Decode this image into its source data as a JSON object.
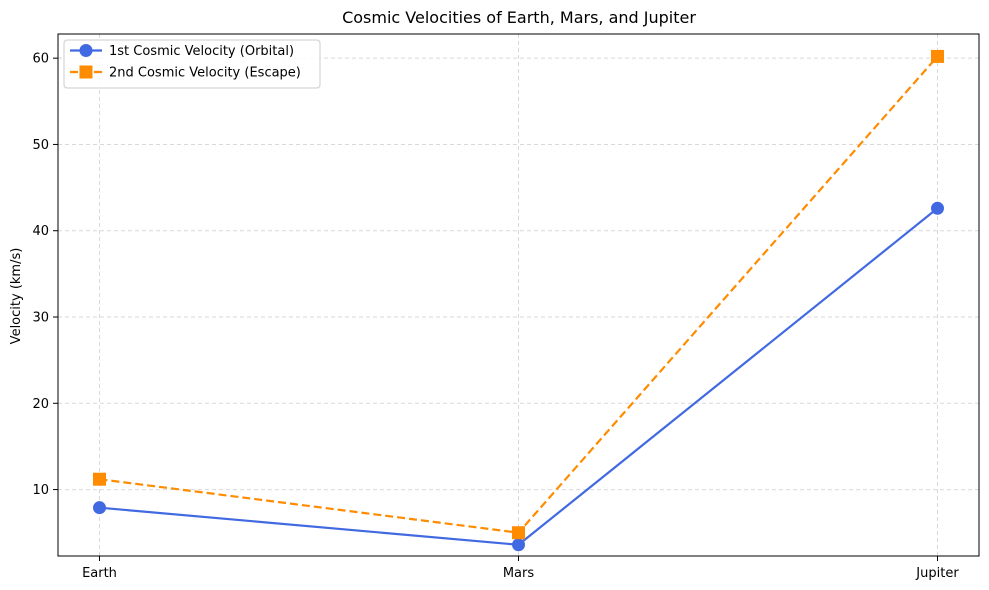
{
  "chart_data": {
    "type": "line",
    "title": "Cosmic Velocities of Earth, Mars, and Jupiter",
    "xlabel": "",
    "ylabel": "Velocity (km/s)",
    "categories": [
      "Earth",
      "Mars",
      "Jupiter"
    ],
    "ylim": [
      2.3,
      62.8
    ],
    "yticks": [
      10,
      20,
      30,
      40,
      50,
      60
    ],
    "grid": true,
    "legend_position": "top-left",
    "series": [
      {
        "name": "1st Cosmic Velocity (Orbital)",
        "values": [
          7.9,
          3.6,
          42.6
        ],
        "color": "#4169e1",
        "line_style": "solid",
        "marker": "circle"
      },
      {
        "name": "2nd Cosmic Velocity (Escape)",
        "values": [
          11.2,
          5.0,
          60.2
        ],
        "color": "#ff8c00",
        "line_style": "dashed",
        "marker": "square"
      }
    ]
  }
}
